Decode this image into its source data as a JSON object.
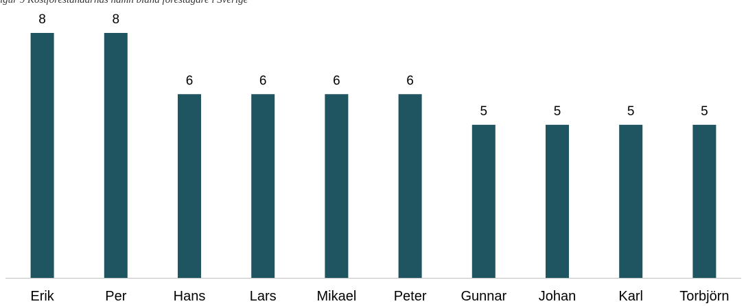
{
  "chart_data": {
    "type": "bar",
    "title": "igur 9 Kostföreståndarnas namn bland förestågare i Sverige",
    "xlabel": "",
    "ylabel": "",
    "categories": [
      "Erik",
      "Per",
      "Hans",
      "Lars",
      "Mikael",
      "Peter",
      "Gunnar",
      "Johan",
      "Karl",
      "Torbjörn"
    ],
    "values": [
      8,
      8,
      6,
      6,
      6,
      6,
      5,
      5,
      5,
      5
    ],
    "ylim": [
      0,
      8
    ],
    "grid": false,
    "legend": "none",
    "bar_color": "#1f5560",
    "axis_color": "#bfbfbf"
  }
}
